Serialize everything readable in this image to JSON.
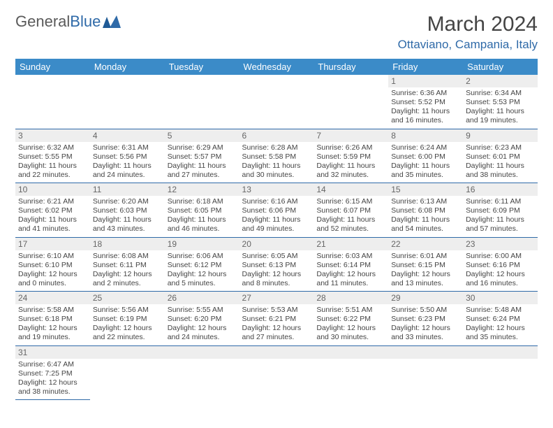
{
  "logo": {
    "part1": "General",
    "part2": "Blue"
  },
  "month_title": "March 2024",
  "location": "Ottaviano, Campania, Italy",
  "colors": {
    "header_bg": "#3b8bc8",
    "accent": "#2f6aa8",
    "daynum_bg": "#eeeeee",
    "text": "#444444"
  },
  "day_headers": [
    "Sunday",
    "Monday",
    "Tuesday",
    "Wednesday",
    "Thursday",
    "Friday",
    "Saturday"
  ],
  "weeks": [
    [
      null,
      null,
      null,
      null,
      null,
      {
        "n": "1",
        "sr": "Sunrise: 6:36 AM",
        "ss": "Sunset: 5:52 PM",
        "dl": "Daylight: 11 hours and 16 minutes."
      },
      {
        "n": "2",
        "sr": "Sunrise: 6:34 AM",
        "ss": "Sunset: 5:53 PM",
        "dl": "Daylight: 11 hours and 19 minutes."
      }
    ],
    [
      {
        "n": "3",
        "sr": "Sunrise: 6:32 AM",
        "ss": "Sunset: 5:55 PM",
        "dl": "Daylight: 11 hours and 22 minutes."
      },
      {
        "n": "4",
        "sr": "Sunrise: 6:31 AM",
        "ss": "Sunset: 5:56 PM",
        "dl": "Daylight: 11 hours and 24 minutes."
      },
      {
        "n": "5",
        "sr": "Sunrise: 6:29 AM",
        "ss": "Sunset: 5:57 PM",
        "dl": "Daylight: 11 hours and 27 minutes."
      },
      {
        "n": "6",
        "sr": "Sunrise: 6:28 AM",
        "ss": "Sunset: 5:58 PM",
        "dl": "Daylight: 11 hours and 30 minutes."
      },
      {
        "n": "7",
        "sr": "Sunrise: 6:26 AM",
        "ss": "Sunset: 5:59 PM",
        "dl": "Daylight: 11 hours and 32 minutes."
      },
      {
        "n": "8",
        "sr": "Sunrise: 6:24 AM",
        "ss": "Sunset: 6:00 PM",
        "dl": "Daylight: 11 hours and 35 minutes."
      },
      {
        "n": "9",
        "sr": "Sunrise: 6:23 AM",
        "ss": "Sunset: 6:01 PM",
        "dl": "Daylight: 11 hours and 38 minutes."
      }
    ],
    [
      {
        "n": "10",
        "sr": "Sunrise: 6:21 AM",
        "ss": "Sunset: 6:02 PM",
        "dl": "Daylight: 11 hours and 41 minutes."
      },
      {
        "n": "11",
        "sr": "Sunrise: 6:20 AM",
        "ss": "Sunset: 6:03 PM",
        "dl": "Daylight: 11 hours and 43 minutes."
      },
      {
        "n": "12",
        "sr": "Sunrise: 6:18 AM",
        "ss": "Sunset: 6:05 PM",
        "dl": "Daylight: 11 hours and 46 minutes."
      },
      {
        "n": "13",
        "sr": "Sunrise: 6:16 AM",
        "ss": "Sunset: 6:06 PM",
        "dl": "Daylight: 11 hours and 49 minutes."
      },
      {
        "n": "14",
        "sr": "Sunrise: 6:15 AM",
        "ss": "Sunset: 6:07 PM",
        "dl": "Daylight: 11 hours and 52 minutes."
      },
      {
        "n": "15",
        "sr": "Sunrise: 6:13 AM",
        "ss": "Sunset: 6:08 PM",
        "dl": "Daylight: 11 hours and 54 minutes."
      },
      {
        "n": "16",
        "sr": "Sunrise: 6:11 AM",
        "ss": "Sunset: 6:09 PM",
        "dl": "Daylight: 11 hours and 57 minutes."
      }
    ],
    [
      {
        "n": "17",
        "sr": "Sunrise: 6:10 AM",
        "ss": "Sunset: 6:10 PM",
        "dl": "Daylight: 12 hours and 0 minutes."
      },
      {
        "n": "18",
        "sr": "Sunrise: 6:08 AM",
        "ss": "Sunset: 6:11 PM",
        "dl": "Daylight: 12 hours and 2 minutes."
      },
      {
        "n": "19",
        "sr": "Sunrise: 6:06 AM",
        "ss": "Sunset: 6:12 PM",
        "dl": "Daylight: 12 hours and 5 minutes."
      },
      {
        "n": "20",
        "sr": "Sunrise: 6:05 AM",
        "ss": "Sunset: 6:13 PM",
        "dl": "Daylight: 12 hours and 8 minutes."
      },
      {
        "n": "21",
        "sr": "Sunrise: 6:03 AM",
        "ss": "Sunset: 6:14 PM",
        "dl": "Daylight: 12 hours and 11 minutes."
      },
      {
        "n": "22",
        "sr": "Sunrise: 6:01 AM",
        "ss": "Sunset: 6:15 PM",
        "dl": "Daylight: 12 hours and 13 minutes."
      },
      {
        "n": "23",
        "sr": "Sunrise: 6:00 AM",
        "ss": "Sunset: 6:16 PM",
        "dl": "Daylight: 12 hours and 16 minutes."
      }
    ],
    [
      {
        "n": "24",
        "sr": "Sunrise: 5:58 AM",
        "ss": "Sunset: 6:18 PM",
        "dl": "Daylight: 12 hours and 19 minutes."
      },
      {
        "n": "25",
        "sr": "Sunrise: 5:56 AM",
        "ss": "Sunset: 6:19 PM",
        "dl": "Daylight: 12 hours and 22 minutes."
      },
      {
        "n": "26",
        "sr": "Sunrise: 5:55 AM",
        "ss": "Sunset: 6:20 PM",
        "dl": "Daylight: 12 hours and 24 minutes."
      },
      {
        "n": "27",
        "sr": "Sunrise: 5:53 AM",
        "ss": "Sunset: 6:21 PM",
        "dl": "Daylight: 12 hours and 27 minutes."
      },
      {
        "n": "28",
        "sr": "Sunrise: 5:51 AM",
        "ss": "Sunset: 6:22 PM",
        "dl": "Daylight: 12 hours and 30 minutes."
      },
      {
        "n": "29",
        "sr": "Sunrise: 5:50 AM",
        "ss": "Sunset: 6:23 PM",
        "dl": "Daylight: 12 hours and 33 minutes."
      },
      {
        "n": "30",
        "sr": "Sunrise: 5:48 AM",
        "ss": "Sunset: 6:24 PM",
        "dl": "Daylight: 12 hours and 35 minutes."
      }
    ],
    [
      {
        "n": "31",
        "sr": "Sunrise: 6:47 AM",
        "ss": "Sunset: 7:25 PM",
        "dl": "Daylight: 12 hours and 38 minutes."
      },
      null,
      null,
      null,
      null,
      null,
      null
    ]
  ]
}
